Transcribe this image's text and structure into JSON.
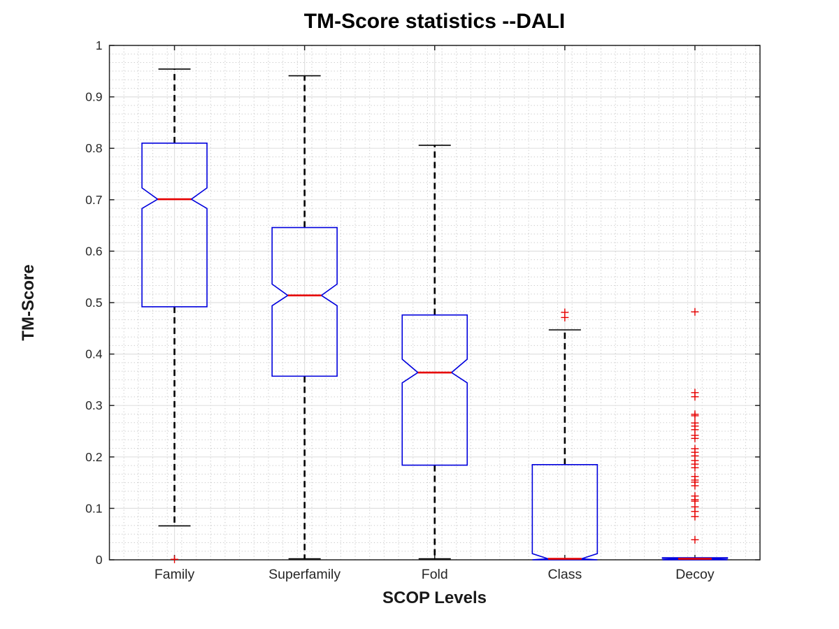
{
  "title": "TM-Score statistics --DALI",
  "chart_data": {
    "type": "boxplot",
    "title": "TM-Score statistics --DALI",
    "xlabel": "SCOP Levels",
    "ylabel": "TM-Score",
    "ylim": [
      0,
      1
    ],
    "yticks": [
      0,
      0.1,
      0.2,
      0.3,
      0.4,
      0.5,
      0.6,
      0.7,
      0.8,
      0.9,
      1
    ],
    "ytick_labels": [
      "0",
      "0.1",
      "0.2",
      "0.3",
      "0.4",
      "0.5",
      "0.6",
      "0.7",
      "0.8",
      "0.9",
      "1"
    ],
    "grid": "major-solid-plus-minor-dotted",
    "legend": "none",
    "categories": [
      "Family",
      "Superfamily",
      "Fold",
      "Class",
      "Decoy"
    ],
    "boxes": [
      {
        "category": "Family",
        "whisker_low": 0.066,
        "q1": 0.492,
        "median": 0.701,
        "q3": 0.81,
        "whisker_high": 0.954,
        "notch_low": 0.683,
        "notch_high": 0.723,
        "outliers": [
          0.001
        ]
      },
      {
        "category": "Superfamily",
        "whisker_low": 0.002,
        "q1": 0.357,
        "median": 0.514,
        "q3": 0.646,
        "whisker_high": 0.941,
        "notch_low": 0.494,
        "notch_high": 0.536,
        "outliers": []
      },
      {
        "category": "Fold",
        "whisker_low": 0.002,
        "q1": 0.184,
        "median": 0.364,
        "q3": 0.476,
        "whisker_high": 0.806,
        "notch_low": 0.344,
        "notch_high": 0.39,
        "outliers": []
      },
      {
        "category": "Class",
        "whisker_low": 0.0,
        "q1": 0.0,
        "median": 0.002,
        "q3": 0.185,
        "whisker_high": 0.447,
        "notch_low": 0.0,
        "notch_high": 0.012,
        "outliers": [
          0.481,
          0.471
        ]
      },
      {
        "category": "Decoy",
        "whisker_low": 0.0,
        "q1": 0.0,
        "median": 0.002,
        "q3": 0.004,
        "whisker_high": 0.004,
        "notch_low": 0.0,
        "notch_high": 0.003,
        "outliers": [
          0.482,
          0.325,
          0.317,
          0.283,
          0.28,
          0.266,
          0.26,
          0.253,
          0.242,
          0.236,
          0.216,
          0.209,
          0.202,
          0.193,
          0.186,
          0.179,
          0.162,
          0.155,
          0.151,
          0.144,
          0.124,
          0.117,
          0.114,
          0.103,
          0.094,
          0.084,
          0.039
        ]
      }
    ],
    "colors": {
      "box": "#0000dd",
      "median": "#e60000",
      "outlier": "#e60000",
      "whisker": "#000000",
      "axis": "#222222",
      "tick_text": "#262626",
      "grid_major": "#e0e0e0",
      "grid_minor": "#c6c6c6",
      "background": "#ffffff"
    }
  }
}
